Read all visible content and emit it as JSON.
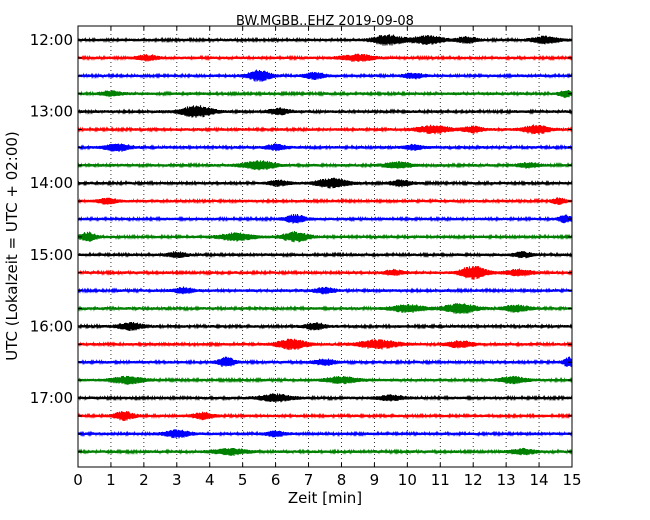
{
  "chart_data": {
    "type": "line",
    "title": "BW.MGBB..EHZ 2019-09-08",
    "xlabel": "Zeit  [min]",
    "ylabel": "UTC (Lokalzeit = UTC + 02:00)",
    "xlim": [
      0,
      15
    ],
    "x_ticks": [
      0,
      1,
      2,
      3,
      4,
      5,
      6,
      7,
      8,
      9,
      10,
      11,
      12,
      13,
      14,
      15
    ],
    "y_tick_labels": [
      "12:00",
      "13:00",
      "14:00",
      "15:00",
      "16:00",
      "17:00"
    ],
    "grid": "vertical dotted",
    "trace_interval_min": 15,
    "color_cycle": [
      "#000000",
      "#ff0000",
      "#0000ff",
      "#008000"
    ],
    "traces": [
      {
        "start": "12:00",
        "bursts": [
          [
            9.4,
            0.45,
            1.6
          ],
          [
            10.6,
            0.5,
            1.3
          ],
          [
            11.8,
            0.3,
            1.0
          ],
          [
            14.2,
            0.4,
            1.1
          ]
        ]
      },
      {
        "start": "12:15",
        "bursts": [
          [
            2.1,
            0.3,
            0.9
          ],
          [
            8.5,
            0.5,
            1.0
          ]
        ]
      },
      {
        "start": "12:30",
        "bursts": [
          [
            5.5,
            0.35,
            1.7
          ],
          [
            7.2,
            0.3,
            1.0
          ],
          [
            10.2,
            0.3,
            0.8
          ]
        ]
      },
      {
        "start": "12:45",
        "bursts": [
          [
            1.0,
            0.3,
            0.8
          ],
          [
            14.8,
            0.2,
            1.0
          ]
        ]
      },
      {
        "start": "13:00",
        "bursts": [
          [
            3.6,
            0.5,
            1.8
          ],
          [
            6.1,
            0.3,
            1.0
          ]
        ]
      },
      {
        "start": "13:15",
        "bursts": [
          [
            10.8,
            0.5,
            1.2
          ],
          [
            12.0,
            0.3,
            1.0
          ],
          [
            13.9,
            0.4,
            1.3
          ]
        ]
      },
      {
        "start": "13:30",
        "bursts": [
          [
            1.2,
            0.4,
            1.1
          ],
          [
            6.0,
            0.3,
            0.9
          ],
          [
            10.2,
            0.3,
            0.8
          ]
        ]
      },
      {
        "start": "13:45",
        "bursts": [
          [
            5.5,
            0.5,
            1.4
          ],
          [
            9.7,
            0.4,
            1.0
          ],
          [
            13.7,
            0.3,
            0.8
          ]
        ]
      },
      {
        "start": "14:00",
        "bursts": [
          [
            7.7,
            0.5,
            1.4
          ],
          [
            9.8,
            0.3,
            1.0
          ],
          [
            6.1,
            0.3,
            0.8
          ]
        ]
      },
      {
        "start": "14:15",
        "bursts": [
          [
            0.9,
            0.3,
            0.8
          ],
          [
            14.6,
            0.2,
            0.9
          ]
        ]
      },
      {
        "start": "14:30",
        "bursts": [
          [
            6.6,
            0.3,
            1.3
          ],
          [
            14.8,
            0.2,
            1.1
          ]
        ]
      },
      {
        "start": "14:45",
        "bursts": [
          [
            0.3,
            0.25,
            1.4
          ],
          [
            4.8,
            0.5,
            1.2
          ],
          [
            6.6,
            0.4,
            1.5
          ]
        ]
      },
      {
        "start": "15:00",
        "bursts": [
          [
            3.0,
            0.3,
            0.8
          ],
          [
            13.5,
            0.3,
            0.8
          ]
        ]
      },
      {
        "start": "15:15",
        "bursts": [
          [
            12.0,
            0.4,
            2.0
          ],
          [
            13.4,
            0.4,
            1.0
          ],
          [
            9.6,
            0.3,
            0.8
          ]
        ]
      },
      {
        "start": "15:30",
        "bursts": [
          [
            3.2,
            0.3,
            0.9
          ],
          [
            7.5,
            0.3,
            0.9
          ]
        ]
      },
      {
        "start": "15:45",
        "bursts": [
          [
            10.0,
            0.5,
            1.2
          ],
          [
            11.6,
            0.5,
            1.5
          ],
          [
            13.3,
            0.4,
            1.0
          ]
        ]
      },
      {
        "start": "16:00",
        "bursts": [
          [
            1.6,
            0.4,
            1.1
          ],
          [
            7.2,
            0.3,
            1.1
          ]
        ]
      },
      {
        "start": "16:15",
        "bursts": [
          [
            6.5,
            0.45,
            1.6
          ],
          [
            9.1,
            0.6,
            1.3
          ],
          [
            11.6,
            0.4,
            1.0
          ]
        ]
      },
      {
        "start": "16:30",
        "bursts": [
          [
            4.5,
            0.25,
            1.5
          ],
          [
            7.5,
            0.3,
            1.0
          ],
          [
            14.9,
            0.15,
            1.5
          ]
        ]
      },
      {
        "start": "16:45",
        "bursts": [
          [
            1.5,
            0.5,
            1.1
          ],
          [
            8.0,
            0.5,
            1.0
          ],
          [
            13.2,
            0.4,
            1.0
          ]
        ]
      },
      {
        "start": "17:00",
        "bursts": [
          [
            6.0,
            0.5,
            1.1
          ],
          [
            9.5,
            0.4,
            0.8
          ]
        ]
      },
      {
        "start": "17:15",
        "bursts": [
          [
            1.4,
            0.3,
            1.3
          ],
          [
            3.8,
            0.3,
            1.1
          ]
        ]
      },
      {
        "start": "17:30",
        "bursts": [
          [
            3.0,
            0.4,
            1.1
          ],
          [
            6.0,
            0.3,
            0.8
          ]
        ]
      },
      {
        "start": "17:45",
        "bursts": [
          [
            4.6,
            0.5,
            1.0
          ],
          [
            13.5,
            0.4,
            0.8
          ]
        ]
      }
    ]
  }
}
